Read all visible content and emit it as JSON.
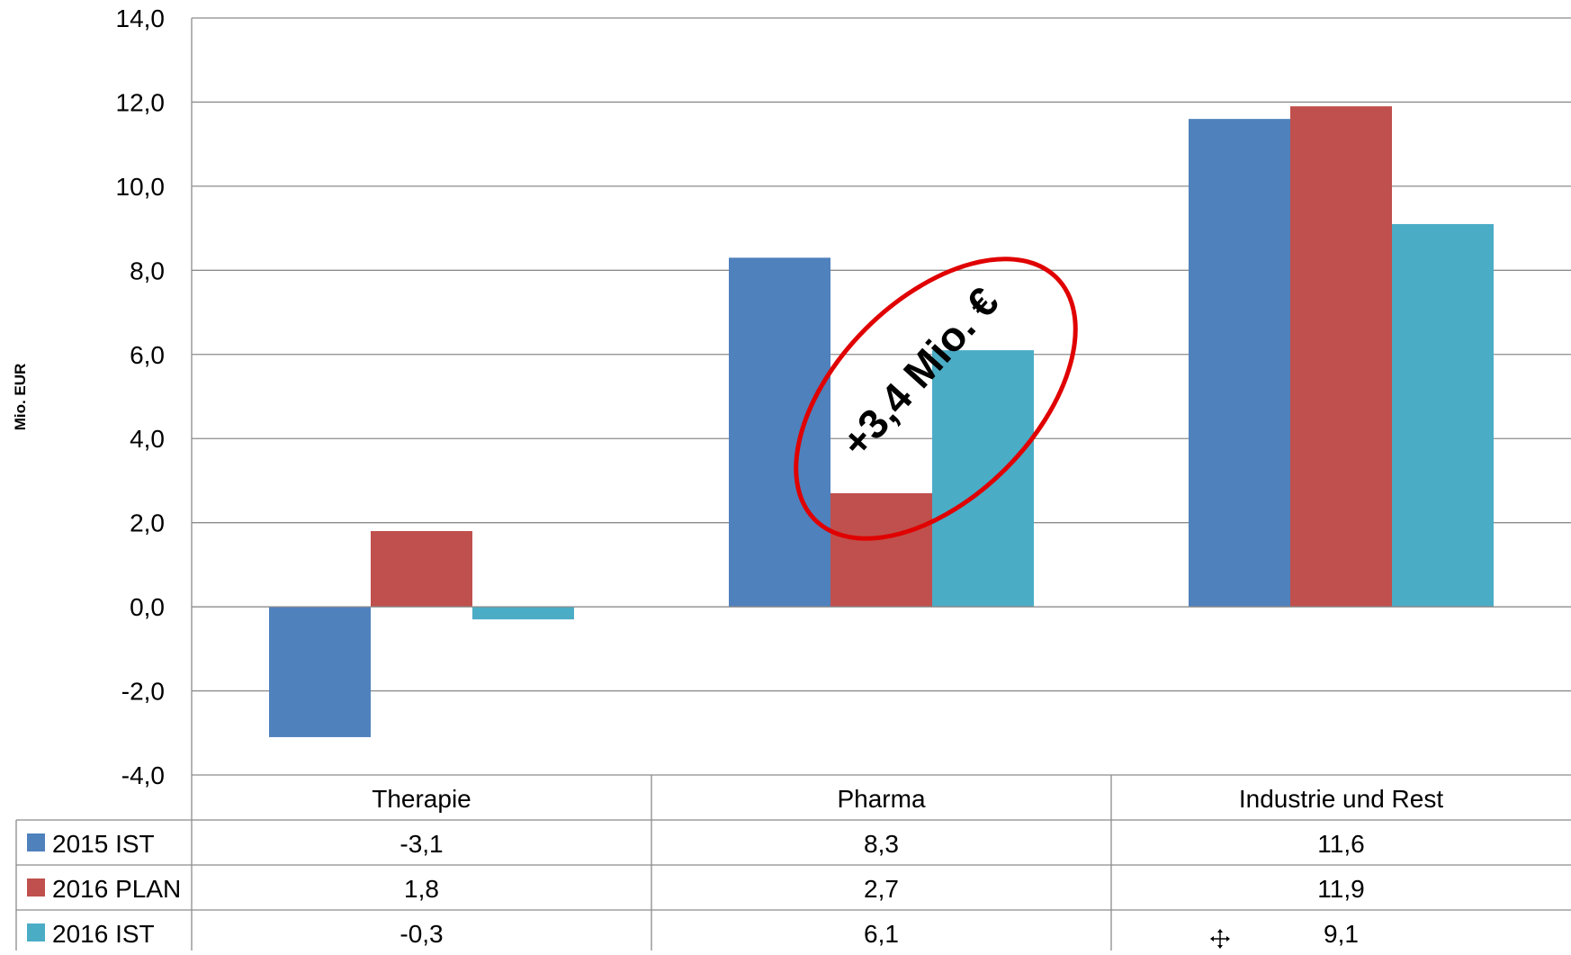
{
  "chart_data": {
    "type": "bar",
    "categories": [
      "Therapie",
      "Pharma",
      "Industrie und Rest"
    ],
    "series": [
      {
        "name": "2015 IST",
        "values": [
          -3.1,
          8.3,
          11.6
        ],
        "color": "#4F81BD",
        "labels": [
          "-3,1",
          "8,3",
          "11,6"
        ]
      },
      {
        "name": "2016 PLAN",
        "values": [
          1.8,
          2.7,
          11.9
        ],
        "color": "#C0504D",
        "labels": [
          "1,8",
          "2,7",
          "11,9"
        ]
      },
      {
        "name": "2016 IST",
        "values": [
          -0.3,
          6.1,
          9.1
        ],
        "color": "#4BACC6",
        "labels": [
          "-0,3",
          "6,1",
          "9,1"
        ]
      }
    ],
    "ylabel": "Mio. EUR",
    "ylim": [
      -4,
      14
    ],
    "yticks": [
      "14,0",
      "12,0",
      "10,0",
      "8,0",
      "6,0",
      "4,0",
      "2,0",
      "0,0",
      "-2,0",
      "-4,0"
    ],
    "grid": true,
    "legend": "data table below chart",
    "annotation": "+3,4 Mio. €",
    "annotation_color": "#E00000"
  }
}
